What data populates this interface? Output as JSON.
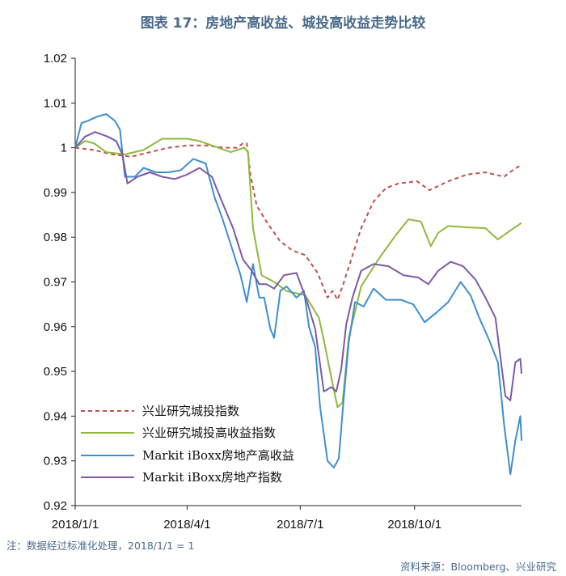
{
  "title": "图表 17：房地产高收益、城投高收益走势比较",
  "note": "注：数据经过标准化处理，2018/1/1 = 1",
  "source": "资料来源：Bloomberg、兴业研究",
  "chart_data": {
    "type": "line",
    "xlabels": [
      "2018/1/1",
      "2018/4/1",
      "2018/7/1",
      "2018/10/1"
    ],
    "xlim_days": [
      0,
      359
    ],
    "ylim": [
      0.92,
      1.02
    ],
    "yticks": [
      "0.92",
      "0.93",
      "0.94",
      "0.95",
      "0.96",
      "0.97",
      "0.98",
      "0.99",
      "1",
      "1.01",
      "1.02"
    ],
    "grid": false,
    "legend_position": "bottom-left",
    "series": [
      {
        "name": "兴业研究城投指数",
        "color": "#c0504d",
        "dash": "dashed",
        "points": [
          [
            0,
            1.0
          ],
          [
            15,
            0.9995
          ],
          [
            30,
            0.9985
          ],
          [
            45,
            0.998
          ],
          [
            60,
            0.999
          ],
          [
            75,
            1.0
          ],
          [
            90,
            1.0005
          ],
          [
            105,
            1.0005
          ],
          [
            120,
            1.0
          ],
          [
            130,
            1.0
          ],
          [
            135,
            1.001
          ],
          [
            138,
            1.001
          ],
          [
            141,
            0.994
          ],
          [
            146,
            0.987
          ],
          [
            155,
            0.983
          ],
          [
            165,
            0.979
          ],
          [
            175,
            0.977
          ],
          [
            185,
            0.976
          ],
          [
            195,
            0.972
          ],
          [
            203,
            0.9665
          ],
          [
            207,
            0.968
          ],
          [
            211,
            0.966
          ],
          [
            215,
            0.969
          ],
          [
            222,
            0.975
          ],
          [
            230,
            0.982
          ],
          [
            240,
            0.988
          ],
          [
            250,
            0.991
          ],
          [
            260,
            0.992
          ],
          [
            275,
            0.9925
          ],
          [
            285,
            0.9905
          ],
          [
            300,
            0.9925
          ],
          [
            315,
            0.994
          ],
          [
            330,
            0.9945
          ],
          [
            345,
            0.9935
          ],
          [
            352,
            0.995
          ],
          [
            359,
            0.9962
          ]
        ]
      },
      {
        "name": "兴业研究城投高收益指数",
        "color": "#8fb83c",
        "dash": "solid",
        "points": [
          [
            0,
            1.0
          ],
          [
            8,
            1.0015
          ],
          [
            15,
            1.001
          ],
          [
            25,
            0.999
          ],
          [
            40,
            0.9985
          ],
          [
            55,
            0.9995
          ],
          [
            70,
            1.002
          ],
          [
            90,
            1.002
          ],
          [
            100,
            1.0015
          ],
          [
            115,
            1.0
          ],
          [
            125,
            0.999
          ],
          [
            136,
            1.0
          ],
          [
            139,
            0.999
          ],
          [
            143,
            0.982
          ],
          [
            150,
            0.9715
          ],
          [
            160,
            0.97
          ],
          [
            170,
            0.968
          ],
          [
            185,
            0.967
          ],
          [
            196,
            0.962
          ],
          [
            200,
            0.957
          ],
          [
            205,
            0.95
          ],
          [
            211,
            0.942
          ],
          [
            215,
            0.943
          ],
          [
            220,
            0.9575
          ],
          [
            230,
            0.969
          ],
          [
            245,
            0.9755
          ],
          [
            258,
            0.9805
          ],
          [
            268,
            0.984
          ],
          [
            278,
            0.9835
          ],
          [
            286,
            0.978
          ],
          [
            292,
            0.981
          ],
          [
            300,
            0.9825
          ],
          [
            315,
            0.9822
          ],
          [
            330,
            0.982
          ],
          [
            340,
            0.9795
          ],
          [
            350,
            0.9815
          ],
          [
            359,
            0.9832
          ]
        ]
      },
      {
        "name": "Markit iBoxx房地产高收益",
        "color": "#3e8fd0",
        "dash": "solid",
        "points": [
          [
            0,
            1.0
          ],
          [
            5,
            1.0055
          ],
          [
            10,
            1.006
          ],
          [
            18,
            1.007
          ],
          [
            25,
            1.0075
          ],
          [
            32,
            1.006
          ],
          [
            36,
            1.004
          ],
          [
            40,
            0.9935
          ],
          [
            48,
            0.9935
          ],
          [
            55,
            0.9955
          ],
          [
            65,
            0.9945
          ],
          [
            75,
            0.9945
          ],
          [
            85,
            0.995
          ],
          [
            95,
            0.9975
          ],
          [
            105,
            0.9965
          ],
          [
            112,
            0.989
          ],
          [
            118,
            0.9845
          ],
          [
            125,
            0.9785
          ],
          [
            133,
            0.9715
          ],
          [
            138,
            0.9655
          ],
          [
            143,
            0.974
          ],
          [
            148,
            0.9665
          ],
          [
            152,
            0.9665
          ],
          [
            157,
            0.9595
          ],
          [
            160,
            0.9575
          ],
          [
            165,
            0.968
          ],
          [
            170,
            0.969
          ],
          [
            178,
            0.9665
          ],
          [
            184,
            0.968
          ],
          [
            188,
            0.96
          ],
          [
            193,
            0.9555
          ],
          [
            197,
            0.942
          ],
          [
            203,
            0.93
          ],
          [
            208,
            0.9285
          ],
          [
            212,
            0.9305
          ],
          [
            216,
            0.944
          ],
          [
            220,
            0.9565
          ],
          [
            225,
            0.9655
          ],
          [
            232,
            0.9645
          ],
          [
            240,
            0.9685
          ],
          [
            250,
            0.966
          ],
          [
            262,
            0.966
          ],
          [
            272,
            0.965
          ],
          [
            281,
            0.961
          ],
          [
            290,
            0.963
          ],
          [
            300,
            0.9655
          ],
          [
            310,
            0.97
          ],
          [
            318,
            0.967
          ],
          [
            325,
            0.962
          ],
          [
            333,
            0.957
          ],
          [
            340,
            0.952
          ],
          [
            345,
            0.938
          ],
          [
            350,
            0.927
          ],
          [
            354,
            0.9345
          ],
          [
            358,
            0.94
          ],
          [
            359,
            0.9345
          ]
        ]
      },
      {
        "name": "Markit iBoxx房地产指数",
        "color": "#7a5aa6",
        "dash": "solid",
        "points": [
          [
            0,
            1.0
          ],
          [
            8,
            1.0025
          ],
          [
            16,
            1.0035
          ],
          [
            26,
            1.0025
          ],
          [
            33,
            1.0015
          ],
          [
            38,
            0.9985
          ],
          [
            42,
            0.992
          ],
          [
            50,
            0.9935
          ],
          [
            60,
            0.9945
          ],
          [
            70,
            0.9935
          ],
          [
            80,
            0.993
          ],
          [
            90,
            0.994
          ],
          [
            100,
            0.9955
          ],
          [
            110,
            0.9935
          ],
          [
            118,
            0.988
          ],
          [
            127,
            0.982
          ],
          [
            135,
            0.975
          ],
          [
            142,
            0.9725
          ],
          [
            148,
            0.9695
          ],
          [
            154,
            0.9695
          ],
          [
            160,
            0.9685
          ],
          [
            168,
            0.9715
          ],
          [
            178,
            0.972
          ],
          [
            186,
            0.966
          ],
          [
            193,
            0.9595
          ],
          [
            200,
            0.9455
          ],
          [
            206,
            0.9465
          ],
          [
            210,
            0.9455
          ],
          [
            214,
            0.9505
          ],
          [
            218,
            0.9605
          ],
          [
            223,
            0.9665
          ],
          [
            230,
            0.9725
          ],
          [
            240,
            0.974
          ],
          [
            252,
            0.9735
          ],
          [
            264,
            0.9715
          ],
          [
            276,
            0.971
          ],
          [
            284,
            0.9695
          ],
          [
            292,
            0.9725
          ],
          [
            302,
            0.9745
          ],
          [
            312,
            0.9735
          ],
          [
            322,
            0.9705
          ],
          [
            330,
            0.9665
          ],
          [
            338,
            0.962
          ],
          [
            346,
            0.9445
          ],
          [
            350,
            0.9435
          ],
          [
            354,
            0.952
          ],
          [
            358,
            0.9528
          ],
          [
            359,
            0.9495
          ]
        ]
      }
    ]
  }
}
